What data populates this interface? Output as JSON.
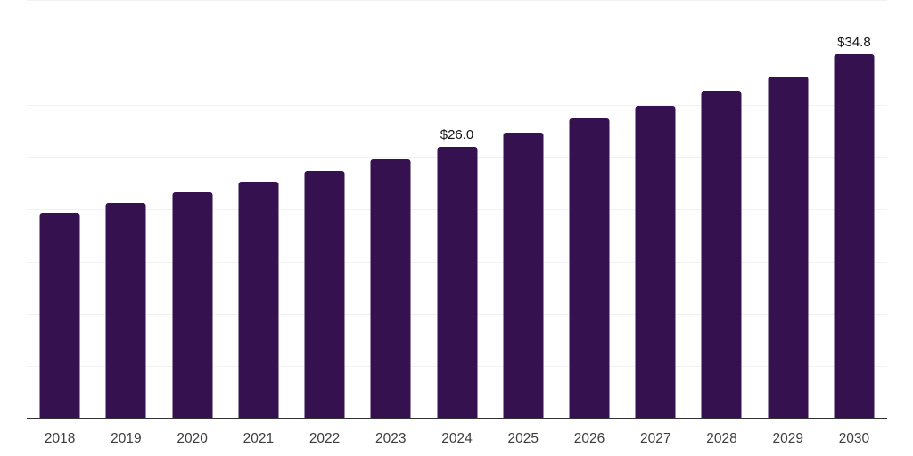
{
  "chart_data": {
    "type": "bar",
    "title": "",
    "xlabel": "",
    "ylabel": "",
    "categories": [
      "2018",
      "2019",
      "2020",
      "2021",
      "2022",
      "2023",
      "2024",
      "2025",
      "2026",
      "2027",
      "2028",
      "2029",
      "2030"
    ],
    "values": [
      19.7,
      20.6,
      21.6,
      22.6,
      23.7,
      24.8,
      26.0,
      27.3,
      28.7,
      29.9,
      31.3,
      32.7,
      34.8
    ],
    "value_labels": {
      "2024": "$26.0",
      "2030": "$34.8"
    },
    "ylim": [
      0,
      40
    ],
    "gridline_step": 5,
    "grid": "horizontal",
    "legend_position": "none",
    "y_axis_tick_labels_visible": false
  },
  "colors": {
    "bar": "#35124F",
    "gridline": "#F1F1F3",
    "axis_line": "#333333",
    "tick_label": "#3D3D3D",
    "value_label": "#111111",
    "background": "#FFFFFF"
  }
}
